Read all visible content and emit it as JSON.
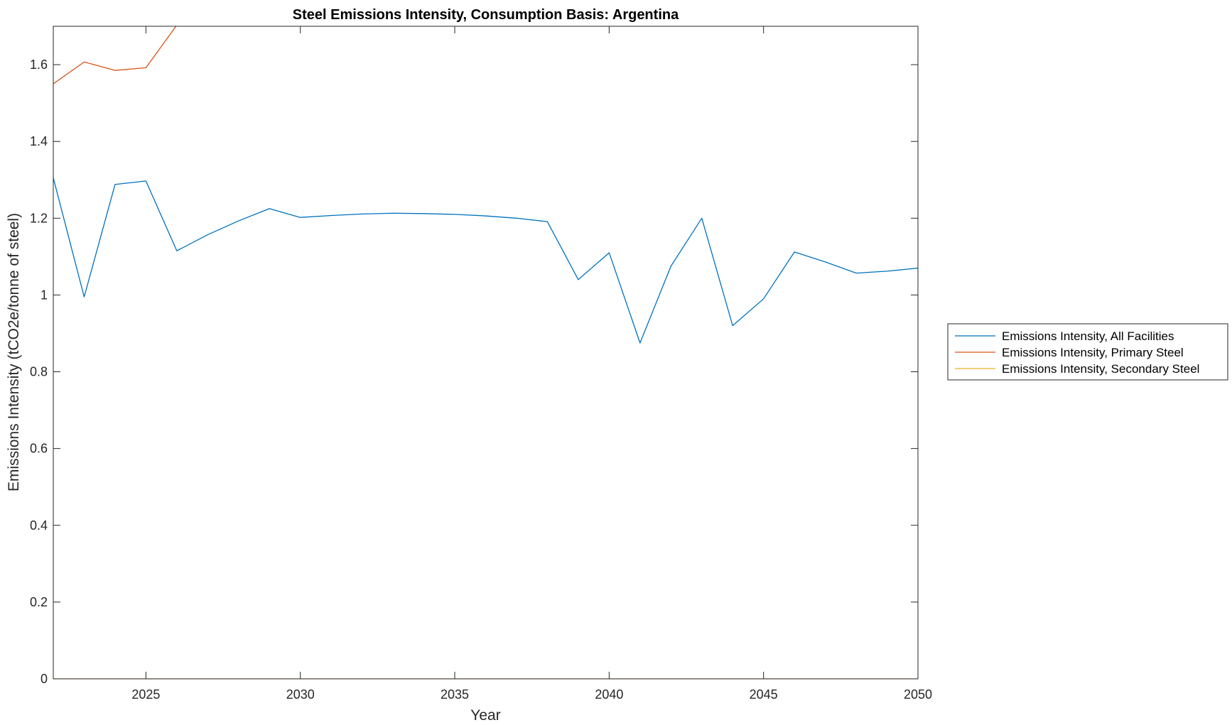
{
  "chart_data": {
    "type": "line",
    "title": "Steel Emissions Intensity, Consumption Basis: Argentina",
    "xlabel": "Year",
    "ylabel": "Emissions Intensity (tCO2e/tonne of steel)",
    "xlim": [
      2022,
      2050
    ],
    "ylim": [
      0,
      1.7
    ],
    "x_ticks": [
      2025,
      2030,
      2035,
      2040,
      2045,
      2050
    ],
    "x_tick_labels": [
      "2025",
      "2030",
      "2035",
      "2040",
      "2045",
      "2050"
    ],
    "y_ticks": [
      0,
      0.2,
      0.4,
      0.6,
      0.8,
      1,
      1.2,
      1.4,
      1.6
    ],
    "y_tick_labels": [
      "0",
      "0.2",
      "0.4",
      "0.6",
      "0.8",
      "1",
      "1.2",
      "1.4",
      "1.6"
    ],
    "grid": false,
    "legend_position": "outside-right",
    "x": [
      2022,
      2023,
      2024,
      2025,
      2026,
      2027,
      2028,
      2029,
      2030,
      2031,
      2032,
      2033,
      2034,
      2035,
      2036,
      2037,
      2038,
      2039,
      2040,
      2041,
      2042,
      2043,
      2044,
      2045,
      2046,
      2047,
      2048,
      2049,
      2050
    ],
    "series": [
      {
        "name": "Emissions Intensity, All Facilities",
        "color": "#0072BD",
        "values": [
          1.305,
          0.995,
          1.288,
          1.297,
          1.115,
          1.157,
          1.193,
          1.225,
          1.202,
          1.207,
          1.211,
          1.213,
          1.212,
          1.21,
          1.206,
          1.2,
          1.191,
          1.04,
          1.11,
          0.875,
          1.075,
          1.2,
          0.92,
          0.99,
          1.112,
          1.086,
          1.057,
          1.062,
          1.07
        ]
      },
      {
        "name": "Emissions Intensity, Primary Steel",
        "color": "#D95319",
        "values": [
          1.55,
          1.607,
          1.585,
          1.592,
          1.703,
          1.703,
          1.703,
          1.703,
          1.703,
          1.703,
          1.703,
          1.703,
          1.703,
          1.703,
          1.703,
          1.703,
          1.703,
          1.703,
          1.703,
          1.703,
          1.703,
          1.703,
          1.703,
          1.703,
          1.703,
          1.703,
          1.703,
          1.703,
          1.703
        ]
      },
      {
        "name": "Emissions Intensity, Secondary Steel",
        "color": "#EDB120",
        "values": [
          0,
          0,
          0,
          0,
          0,
          0,
          0,
          0,
          0,
          0,
          0,
          0,
          0,
          0,
          0,
          0,
          0,
          0,
          0,
          0,
          0,
          0,
          0,
          0,
          0,
          0,
          0,
          0,
          0
        ]
      }
    ]
  }
}
